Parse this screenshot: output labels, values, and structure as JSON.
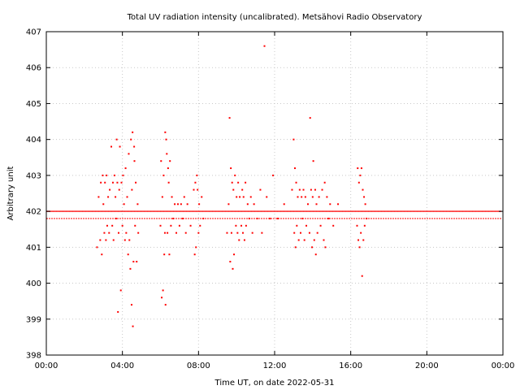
{
  "chart_data": {
    "type": "scatter",
    "title": "Total UV radiation intensity (uncalibrated). Metsähovi Radio Observatory",
    "xlabel": "Time UT, on date 2022-05-31",
    "ylabel": "Arbitrary unit",
    "xlim": [
      "00:00",
      "24:00"
    ],
    "ylim": [
      398,
      407
    ],
    "x_ticks": [
      "00:00",
      "04:00",
      "08:00",
      "12:00",
      "16:00",
      "20:00",
      "00:00"
    ],
    "y_ticks": [
      "398",
      "399",
      "400",
      "401",
      "402",
      "403",
      "404",
      "405",
      "406",
      "407"
    ],
    "grid": true,
    "point_color": "#ff0000",
    "baseline": {
      "value_main": 402.0,
      "value_secondary": 401.8,
      "note": "continuous dense band of points across the whole day"
    },
    "points": [
      {
        "x": "02:40",
        "y": 401.0
      },
      {
        "x": "02:45",
        "y": 402.4
      },
      {
        "x": "02:50",
        "y": 401.2
      },
      {
        "x": "02:52",
        "y": 402.8
      },
      {
        "x": "02:55",
        "y": 400.8
      },
      {
        "x": "02:58",
        "y": 403.0
      },
      {
        "x": "03:00",
        "y": 402.2
      },
      {
        "x": "03:03",
        "y": 401.4
      },
      {
        "x": "03:05",
        "y": 402.8
      },
      {
        "x": "03:08",
        "y": 401.2
      },
      {
        "x": "03:10",
        "y": 403.0
      },
      {
        "x": "03:12",
        "y": 401.6
      },
      {
        "x": "03:15",
        "y": 402.4
      },
      {
        "x": "03:18",
        "y": 401.4
      },
      {
        "x": "03:20",
        "y": 402.6
      },
      {
        "x": "03:25",
        "y": 403.8
      },
      {
        "x": "03:28",
        "y": 401.6
      },
      {
        "x": "03:30",
        "y": 402.8
      },
      {
        "x": "03:32",
        "y": 401.2
      },
      {
        "x": "03:35",
        "y": 403.0
      },
      {
        "x": "03:38",
        "y": 402.4
      },
      {
        "x": "03:40",
        "y": 401.8
      },
      {
        "x": "03:42",
        "y": 404.0
      },
      {
        "x": "03:44",
        "y": 402.8
      },
      {
        "x": "03:46",
        "y": 399.2
      },
      {
        "x": "03:48",
        "y": 401.4
      },
      {
        "x": "03:50",
        "y": 402.6
      },
      {
        "x": "03:52",
        "y": 403.8
      },
      {
        "x": "03:55",
        "y": 399.8
      },
      {
        "x": "03:57",
        "y": 402.8
      },
      {
        "x": "04:00",
        "y": 401.6
      },
      {
        "x": "04:02",
        "y": 403.0
      },
      {
        "x": "04:05",
        "y": 402.2
      },
      {
        "x": "04:08",
        "y": 401.2
      },
      {
        "x": "04:10",
        "y": 403.2
      },
      {
        "x": "04:12",
        "y": 401.4
      },
      {
        "x": "04:15",
        "y": 402.4
      },
      {
        "x": "04:18",
        "y": 400.8
      },
      {
        "x": "04:20",
        "y": 403.6
      },
      {
        "x": "04:22",
        "y": 401.2
      },
      {
        "x": "04:25",
        "y": 400.4
      },
      {
        "x": "04:27",
        "y": 404.0
      },
      {
        "x": "04:29",
        "y": 399.4
      },
      {
        "x": "04:30",
        "y": 402.6
      },
      {
        "x": "04:32",
        "y": 404.2
      },
      {
        "x": "04:33",
        "y": 398.8
      },
      {
        "x": "04:35",
        "y": 400.6
      },
      {
        "x": "04:37",
        "y": 403.8
      },
      {
        "x": "04:38",
        "y": 403.4
      },
      {
        "x": "04:40",
        "y": 401.6
      },
      {
        "x": "04:42",
        "y": 402.8
      },
      {
        "x": "04:45",
        "y": 400.6
      },
      {
        "x": "04:48",
        "y": 402.2
      },
      {
        "x": "04:50",
        "y": 401.4
      },
      {
        "x": "06:00",
        "y": 401.6
      },
      {
        "x": "06:02",
        "y": 403.4
      },
      {
        "x": "06:04",
        "y": 399.6
      },
      {
        "x": "06:06",
        "y": 402.4
      },
      {
        "x": "06:08",
        "y": 399.8
      },
      {
        "x": "06:10",
        "y": 403.0
      },
      {
        "x": "06:12",
        "y": 400.8
      },
      {
        "x": "06:14",
        "y": 401.4
      },
      {
        "x": "06:15",
        "y": 404.2
      },
      {
        "x": "06:16",
        "y": 399.4
      },
      {
        "x": "06:18",
        "y": 404.0
      },
      {
        "x": "06:20",
        "y": 403.6
      },
      {
        "x": "06:22",
        "y": 401.4
      },
      {
        "x": "06:24",
        "y": 403.2
      },
      {
        "x": "06:26",
        "y": 402.8
      },
      {
        "x": "06:28",
        "y": 400.8
      },
      {
        "x": "06:30",
        "y": 403.4
      },
      {
        "x": "06:33",
        "y": 401.6
      },
      {
        "x": "06:36",
        "y": 402.4
      },
      {
        "x": "06:40",
        "y": 401.8
      },
      {
        "x": "06:45",
        "y": 402.2
      },
      {
        "x": "06:50",
        "y": 401.4
      },
      {
        "x": "06:55",
        "y": 402.2
      },
      {
        "x": "07:00",
        "y": 401.6
      },
      {
        "x": "07:05",
        "y": 402.2
      },
      {
        "x": "07:10",
        "y": 401.8
      },
      {
        "x": "07:15",
        "y": 402.4
      },
      {
        "x": "07:20",
        "y": 401.4
      },
      {
        "x": "07:25",
        "y": 402.2
      },
      {
        "x": "07:35",
        "y": 401.6
      },
      {
        "x": "07:45",
        "y": 402.6
      },
      {
        "x": "07:48",
        "y": 400.8
      },
      {
        "x": "07:50",
        "y": 402.8
      },
      {
        "x": "07:52",
        "y": 401.0
      },
      {
        "x": "07:55",
        "y": 403.0
      },
      {
        "x": "07:57",
        "y": 402.6
      },
      {
        "x": "08:00",
        "y": 401.4
      },
      {
        "x": "08:02",
        "y": 402.2
      },
      {
        "x": "08:05",
        "y": 401.6
      },
      {
        "x": "08:10",
        "y": 402.4
      },
      {
        "x": "08:15",
        "y": 401.8
      },
      {
        "x": "09:30",
        "y": 401.4
      },
      {
        "x": "09:35",
        "y": 402.2
      },
      {
        "x": "09:38",
        "y": 404.6
      },
      {
        "x": "09:40",
        "y": 400.6
      },
      {
        "x": "09:42",
        "y": 403.2
      },
      {
        "x": "09:44",
        "y": 401.4
      },
      {
        "x": "09:46",
        "y": 402.8
      },
      {
        "x": "09:48",
        "y": 400.4
      },
      {
        "x": "09:50",
        "y": 402.6
      },
      {
        "x": "09:52",
        "y": 400.8
      },
      {
        "x": "09:55",
        "y": 403.0
      },
      {
        "x": "09:58",
        "y": 401.6
      },
      {
        "x": "10:00",
        "y": 402.4
      },
      {
        "x": "10:03",
        "y": 401.4
      },
      {
        "x": "10:05",
        "y": 402.8
      },
      {
        "x": "10:08",
        "y": 401.2
      },
      {
        "x": "10:10",
        "y": 402.4
      },
      {
        "x": "10:15",
        "y": 401.6
      },
      {
        "x": "10:18",
        "y": 402.6
      },
      {
        "x": "10:20",
        "y": 401.4
      },
      {
        "x": "10:22",
        "y": 402.4
      },
      {
        "x": "10:25",
        "y": 401.2
      },
      {
        "x": "10:28",
        "y": 402.8
      },
      {
        "x": "10:30",
        "y": 401.6
      },
      {
        "x": "10:35",
        "y": 402.2
      },
      {
        "x": "10:40",
        "y": 401.8
      },
      {
        "x": "10:45",
        "y": 402.4
      },
      {
        "x": "10:50",
        "y": 401.4
      },
      {
        "x": "10:55",
        "y": 402.2
      },
      {
        "x": "11:05",
        "y": 401.8
      },
      {
        "x": "11:15",
        "y": 402.6
      },
      {
        "x": "11:20",
        "y": 401.4
      },
      {
        "x": "11:28",
        "y": 406.6
      },
      {
        "x": "11:35",
        "y": 402.4
      },
      {
        "x": "11:45",
        "y": 401.8
      },
      {
        "x": "11:55",
        "y": 403.0
      },
      {
        "x": "12:10",
        "y": 401.8
      },
      {
        "x": "12:30",
        "y": 402.2
      },
      {
        "x": "12:55",
        "y": 402.6
      },
      {
        "x": "13:00",
        "y": 404.0
      },
      {
        "x": "13:02",
        "y": 401.4
      },
      {
        "x": "13:04",
        "y": 403.2
      },
      {
        "x": "13:06",
        "y": 401.0
      },
      {
        "x": "13:08",
        "y": 402.8
      },
      {
        "x": "13:10",
        "y": 401.6
      },
      {
        "x": "13:13",
        "y": 402.4
      },
      {
        "x": "13:16",
        "y": 401.2
      },
      {
        "x": "13:19",
        "y": 402.6
      },
      {
        "x": "13:22",
        "y": 401.4
      },
      {
        "x": "13:25",
        "y": 402.4
      },
      {
        "x": "13:28",
        "y": 401.8
      },
      {
        "x": "13:31",
        "y": 402.6
      },
      {
        "x": "13:34",
        "y": 401.2
      },
      {
        "x": "13:37",
        "y": 402.4
      },
      {
        "x": "13:40",
        "y": 401.6
      },
      {
        "x": "13:45",
        "y": 402.2
      },
      {
        "x": "13:50",
        "y": 401.4
      },
      {
        "x": "13:52",
        "y": 404.6
      },
      {
        "x": "13:55",
        "y": 402.6
      },
      {
        "x": "13:58",
        "y": 401.0
      },
      {
        "x": "14:00",
        "y": 402.4
      },
      {
        "x": "14:02",
        "y": 403.4
      },
      {
        "x": "14:05",
        "y": 401.2
      },
      {
        "x": "14:08",
        "y": 402.6
      },
      {
        "x": "14:10",
        "y": 400.8
      },
      {
        "x": "14:12",
        "y": 402.2
      },
      {
        "x": "14:15",
        "y": 401.4
      },
      {
        "x": "14:20",
        "y": 402.4
      },
      {
        "x": "14:25",
        "y": 401.6
      },
      {
        "x": "14:30",
        "y": 402.6
      },
      {
        "x": "14:35",
        "y": 401.2
      },
      {
        "x": "14:38",
        "y": 402.8
      },
      {
        "x": "14:40",
        "y": 401.0
      },
      {
        "x": "14:45",
        "y": 402.4
      },
      {
        "x": "14:50",
        "y": 401.8
      },
      {
        "x": "14:55",
        "y": 402.2
      },
      {
        "x": "15:05",
        "y": 401.6
      },
      {
        "x": "15:20",
        "y": 402.2
      },
      {
        "x": "16:20",
        "y": 401.6
      },
      {
        "x": "16:22",
        "y": 403.2
      },
      {
        "x": "16:24",
        "y": 401.2
      },
      {
        "x": "16:26",
        "y": 402.8
      },
      {
        "x": "16:28",
        "y": 401.0
      },
      {
        "x": "16:30",
        "y": 403.0
      },
      {
        "x": "16:32",
        "y": 401.4
      },
      {
        "x": "16:34",
        "y": 403.2
      },
      {
        "x": "16:36",
        "y": 400.2
      },
      {
        "x": "16:38",
        "y": 402.6
      },
      {
        "x": "16:40",
        "y": 401.2
      },
      {
        "x": "16:42",
        "y": 402.4
      },
      {
        "x": "16:44",
        "y": 401.6
      },
      {
        "x": "16:46",
        "y": 402.2
      },
      {
        "x": "16:50",
        "y": 401.8
      }
    ]
  }
}
